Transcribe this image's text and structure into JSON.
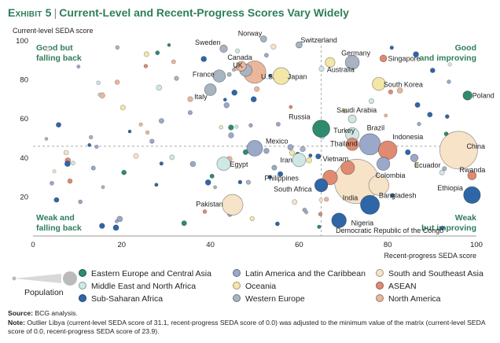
{
  "header": {
    "exhibit_label": "Exhibit 5",
    "title": "Current-Level and Recent-Progress Scores Vary Widely"
  },
  "chart_data": {
    "type": "scatter",
    "ylabel": "Current-level SEDA score",
    "xlabel": "Recent-progress SEDA score",
    "xlim": [
      0,
      100
    ],
    "ylim": [
      0,
      100
    ],
    "x_ticks": [
      0,
      20,
      40,
      60,
      80,
      100
    ],
    "y_ticks": [
      20,
      40,
      60,
      80,
      100
    ],
    "divider_x": 65,
    "divider_y": 46,
    "quadrants": {
      "top_left": "Good but falling back",
      "top_right": "Good and improving",
      "bottom_left": "Weak and falling back",
      "bottom_right": "Weak but improving"
    },
    "regions": [
      {
        "key": "ee",
        "name": "Eastern Europe and Central Asia",
        "color": "#2e8b6f"
      },
      {
        "key": "la",
        "name": "Latin America and the Caribbean",
        "color": "#9aa9c9"
      },
      {
        "key": "sa",
        "name": "South and Southeast Asia",
        "color": "#f6e3c8"
      },
      {
        "key": "me",
        "name": "Middle East and North Africa",
        "color": "#cfe8e6"
      },
      {
        "key": "oc",
        "name": "Oceania",
        "color": "#f3e6a8"
      },
      {
        "key": "as",
        "name": "ASEAN",
        "color": "#e08a72"
      },
      {
        "key": "ss",
        "name": "Sub-Saharan Africa",
        "color": "#2f66a8"
      },
      {
        "key": "we",
        "name": "Western Europe",
        "color": "#a8b4c2"
      },
      {
        "key": "na",
        "name": "North America",
        "color": "#eab79a"
      }
    ],
    "population_label": "Population",
    "points": [
      {
        "label": "Norway",
        "x": 52,
        "y": 101,
        "r": 0.3,
        "region": "we"
      },
      {
        "label": "Switzerland",
        "x": 60,
        "y": 98,
        "r": 0.3,
        "region": "we"
      },
      {
        "label": "Sweden",
        "x": 43,
        "y": 96,
        "r": 0.5,
        "region": "we"
      },
      {
        "label": "Canada",
        "x": 47,
        "y": 87,
        "r": 0.9,
        "region": "na"
      },
      {
        "label": "U.S.",
        "x": 50,
        "y": 84,
        "r": 3.2,
        "region": "na"
      },
      {
        "label": "UK",
        "x": 48,
        "y": 85,
        "r": 1.4,
        "region": "we"
      },
      {
        "label": "France",
        "x": 42,
        "y": 82,
        "r": 1.4,
        "region": "we"
      },
      {
        "label": "Japan",
        "x": 56,
        "y": 82,
        "r": 2.2,
        "region": "oc"
      },
      {
        "label": "Italy",
        "x": 40,
        "y": 75,
        "r": 1.3,
        "region": "we"
      },
      {
        "label": "Germany",
        "x": 72,
        "y": 89,
        "r": 1.7,
        "region": "we"
      },
      {
        "label": "Singapore",
        "x": 79,
        "y": 91,
        "r": 0.4,
        "region": "as"
      },
      {
        "label": "Australia",
        "x": 67,
        "y": 89,
        "r": 0.9,
        "region": "oc"
      },
      {
        "label": "South Korea",
        "x": 78,
        "y": 78,
        "r": 1.5,
        "region": "oc"
      },
      {
        "label": "Poland",
        "x": 98,
        "y": 72,
        "r": 0.8,
        "region": "ee"
      },
      {
        "label": "Saudi Arabia",
        "x": 72,
        "y": 60,
        "r": 0.6,
        "region": "me"
      },
      {
        "label": "Russia",
        "x": 65,
        "y": 55,
        "r": 2.3,
        "region": "ee"
      },
      {
        "label": "Turkey",
        "x": 72,
        "y": 52,
        "r": 1.6,
        "region": "me"
      },
      {
        "label": "Brazil",
        "x": 76,
        "y": 47,
        "r": 3.0,
        "region": "la"
      },
      {
        "label": "Indonesia",
        "x": 80,
        "y": 44,
        "r": 2.5,
        "region": "as"
      },
      {
        "label": "China",
        "x": 96,
        "y": 44,
        "r": 6.0,
        "region": "sa"
      },
      {
        "label": "Thailand",
        "x": 72,
        "y": 47,
        "r": 1.4,
        "region": "as"
      },
      {
        "label": "Mexico",
        "x": 50,
        "y": 45,
        "r": 2.0,
        "region": "la"
      },
      {
        "label": "Egypt",
        "x": 43,
        "y": 37,
        "r": 1.6,
        "region": "me"
      },
      {
        "label": "Iran",
        "x": 60,
        "y": 39,
        "r": 1.6,
        "region": "me"
      },
      {
        "label": "Vietnam",
        "x": 71,
        "y": 35,
        "r": 1.6,
        "region": "as"
      },
      {
        "label": "Colombia",
        "x": 79,
        "y": 37,
        "r": 1.5,
        "region": "la"
      },
      {
        "label": "Ecuador",
        "x": 86,
        "y": 40,
        "r": 0.5,
        "region": "la"
      },
      {
        "label": "Philippines",
        "x": 67,
        "y": 30,
        "r": 1.8,
        "region": "as"
      },
      {
        "label": "South Africa",
        "x": 65,
        "y": 26,
        "r": 1.5,
        "region": "ss"
      },
      {
        "label": "Bangladesh",
        "x": 78,
        "y": 26,
        "r": 2.8,
        "region": "sa"
      },
      {
        "label": "India",
        "x": 73,
        "y": 28,
        "r": 7.2,
        "region": "sa"
      },
      {
        "label": "Pakistan",
        "x": 45,
        "y": 16,
        "r": 2.9,
        "region": "sa"
      },
      {
        "label": "Nigeria",
        "x": 76,
        "y": 16,
        "r": 2.6,
        "region": "ss"
      },
      {
        "label": "Rwanda",
        "x": 99,
        "y": 31,
        "r": 0.7,
        "region": "as"
      },
      {
        "label": "Ethiopia",
        "x": 99,
        "y": 21,
        "r": 2.2,
        "region": "ss"
      },
      {
        "label": "Democratic Republic of the Congo",
        "x": 69,
        "y": 8,
        "r": 1.8,
        "region": "ss"
      }
    ]
  },
  "legend": {
    "population_label": "Population"
  },
  "footer": {
    "source_label": "Source:",
    "source_text": "BCG analysis.",
    "note_label": "Note:",
    "note_text": "Outlier Libya (current-level SEDA score of 31.1, recent-progress SEDA score of 0.0) was adjusted to the minimum value of the matrix (current-level SEDA score of 0.0, recent-progress SEDA score of 23.9)."
  }
}
